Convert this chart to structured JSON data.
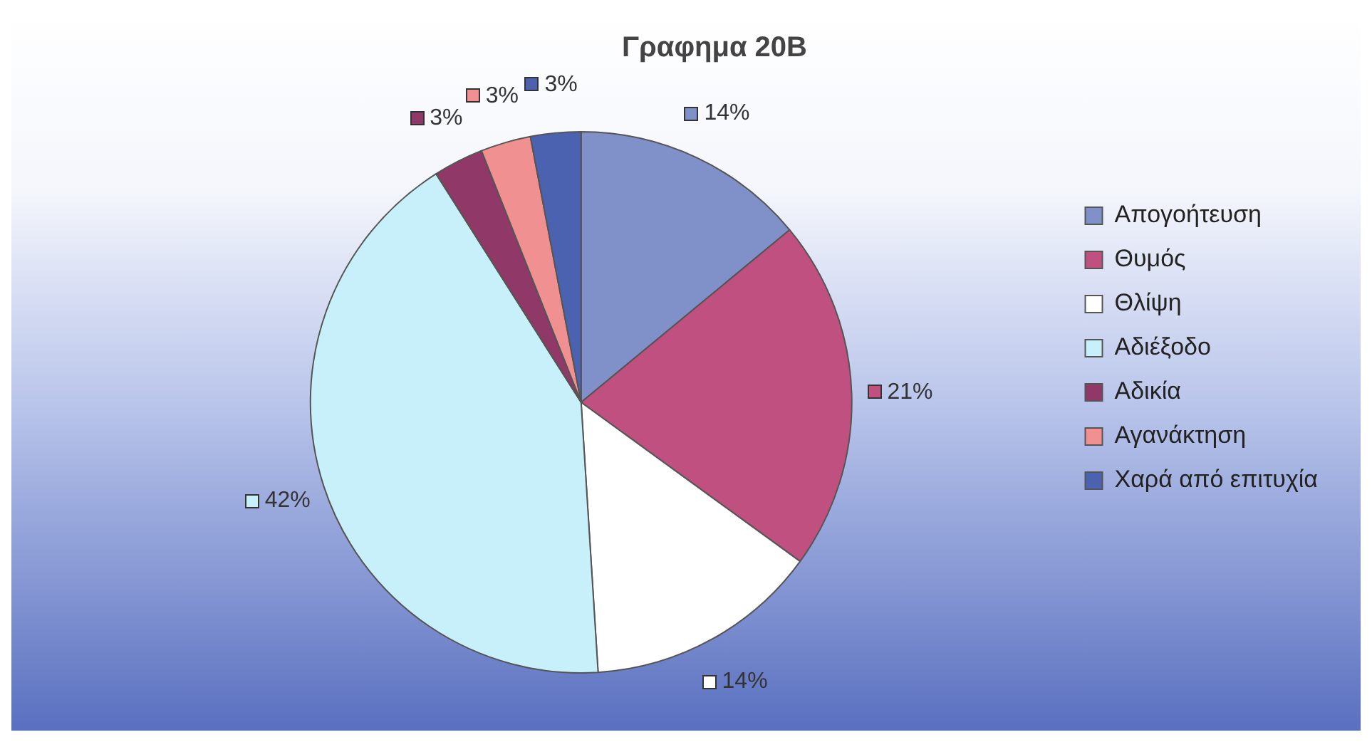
{
  "chart_data": {
    "type": "pie",
    "title": "Γραφημα 20Β",
    "categories": [
      "Απογοήτευση",
      "Θυμός",
      "Θλίψη",
      "Αδιέξοδο",
      "Αδικία",
      "Αγανάκτηση",
      "Χαρά από επιτυχία"
    ],
    "values": [
      14,
      21,
      14,
      42,
      3,
      3,
      3
    ],
    "value_labels": [
      "14%",
      "21%",
      "14%",
      "42%",
      "3%",
      "3%",
      "3%"
    ],
    "colors": [
      "#8090c8",
      "#c05080",
      "#ffffff",
      "#c8f0fa",
      "#903868",
      "#f09090",
      "#4a62b0"
    ],
    "legend": "right"
  }
}
